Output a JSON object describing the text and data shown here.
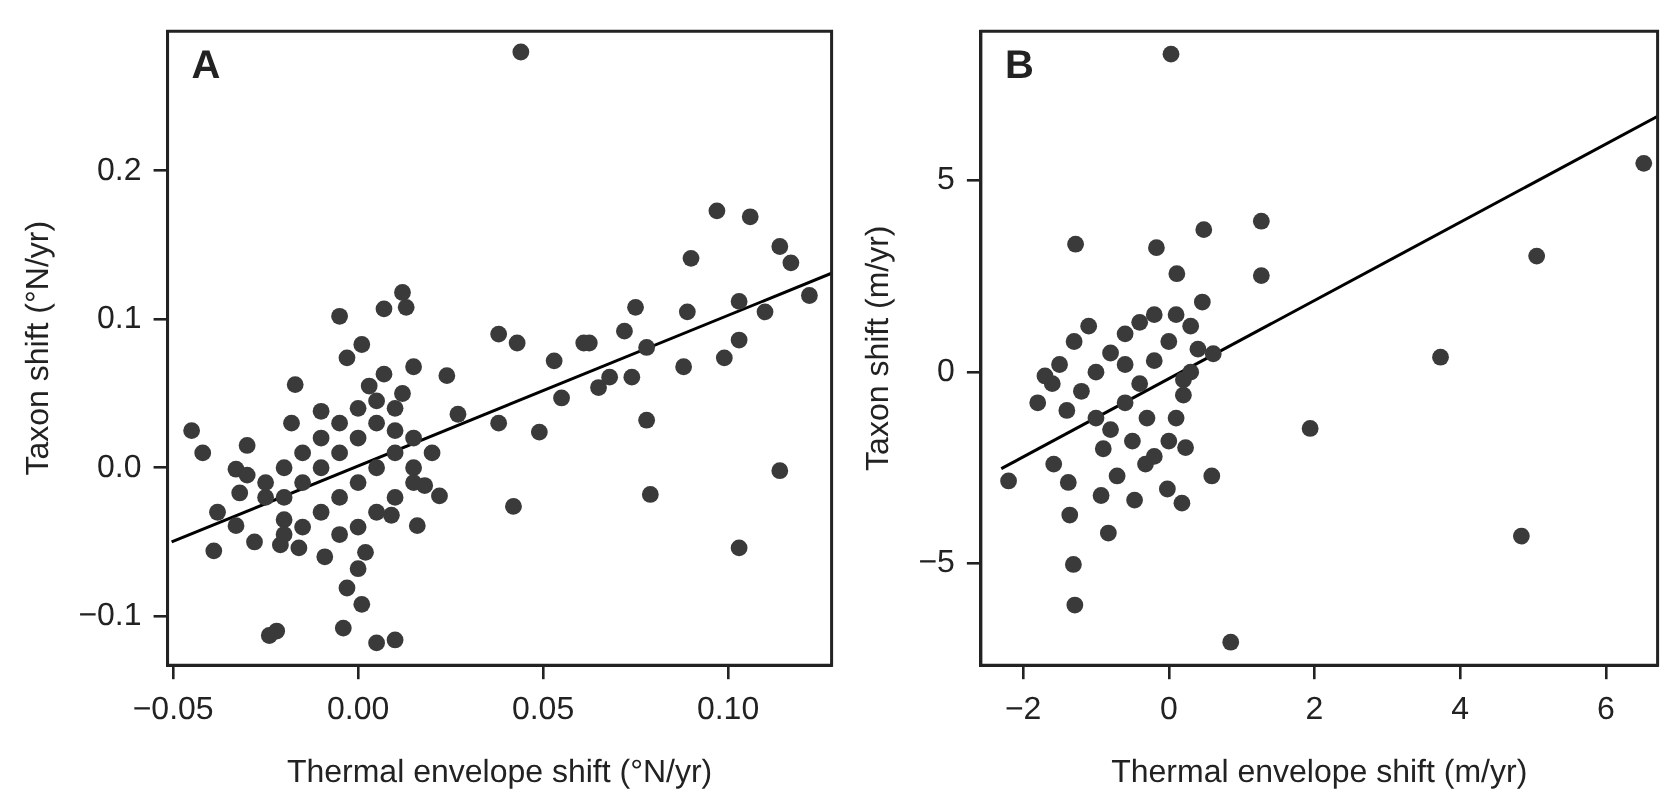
{
  "chart_data": [
    {
      "type": "scatter",
      "annotations": [
        "A"
      ],
      "xlabel": "Thermal envelope shift (°N/yr)",
      "ylabel": "Taxon shift (°N/yr)",
      "xlim": [
        -0.0515,
        0.128
      ],
      "ylim": [
        -0.133,
        0.294
      ],
      "xticks": [
        {
          "value": -0.05,
          "label": "−0.05"
        },
        {
          "value": 0,
          "label": "0.00"
        },
        0.05,
        {
          "value": 0.1,
          "label": "0.10"
        }
      ],
      "yticks": [
        {
          "value": -0.1,
          "label": "−0.1"
        },
        {
          "value": 0,
          "label": "0.0"
        },
        0.1,
        0.2
      ],
      "grid": false,
      "marker": "circle",
      "series": [
        {
          "color": "#3a3a3a",
          "x": [
            0.044,
            -0.045,
            -0.042,
            -0.03,
            -0.017,
            -0.018,
            -0.01,
            -0.005,
            0.001,
            -0.003,
            0.007,
            0.012,
            0.013,
            0.015,
            0.007,
            0.024,
            0.027,
            0.038,
            0.043,
            0.038,
            0.049,
            0.053,
            0.055,
            0.061,
            0.0625,
            0.072,
            0.075,
            0.065,
            0.068,
            0.074,
            0.078,
            0.078,
            0.079,
            0.089,
            0.09,
            0.088,
            0.097,
            0.106,
            0.099,
            0.103,
            0.103,
            0.11,
            0.114,
            0.117,
            0.122,
            0.114,
            0.103,
            0.042,
            0.018,
            0.022,
            0.016,
            0.009,
            0.002,
            0.0,
            -0.003,
            0.001,
            -0.004,
            0.005,
            0.01,
            -0.022,
            -0.024,
            -0.009,
            -0.039,
            -0.038,
            -0.033,
            -0.033,
            -0.032,
            -0.028,
            -0.021,
            -0.016,
            -0.02,
            -0.015,
            -0.01,
            -0.005,
            0.0,
            0.005,
            0.01,
            0.01,
            0.005,
            0.0,
            -0.005,
            -0.01,
            -0.015,
            -0.02,
            -0.025,
            -0.025,
            -0.02,
            -0.015,
            -0.01,
            -0.005,
            0.0,
            0.005,
            0.01,
            0.015,
            0.015,
            0.01,
            0.005,
            0.0,
            -0.005,
            0.015,
            0.02,
            -0.03,
            -0.02,
            0.003,
            0.012
          ],
          "values": [
            0.28,
            0.025,
            0.01,
            0.015,
            0.056,
            0.03,
            0.038,
            0.102,
            0.083,
            0.074,
            0.107,
            0.118,
            0.108,
            0.068,
            0.063,
            0.062,
            0.036,
            0.09,
            0.084,
            0.03,
            0.024,
            0.072,
            0.047,
            0.084,
            0.084,
            0.092,
            0.108,
            0.054,
            0.061,
            0.061,
            0.081,
            0.032,
            -0.018,
            0.105,
            0.141,
            0.068,
            0.173,
            0.169,
            0.074,
            0.086,
            0.112,
            0.105,
            0.149,
            0.138,
            0.116,
            -0.002,
            -0.054,
            -0.026,
            -0.012,
            -0.019,
            -0.039,
            -0.032,
            -0.057,
            -0.068,
            -0.081,
            -0.092,
            -0.108,
            -0.118,
            -0.116,
            -0.11,
            -0.113,
            -0.06,
            -0.056,
            -0.03,
            -0.039,
            -0.001,
            -0.017,
            -0.05,
            -0.052,
            -0.054,
            -0.02,
            -0.01,
            0.0,
            0.01,
            0.02,
            0.03,
            0.025,
            0.01,
            0.0,
            -0.01,
            -0.02,
            -0.03,
            -0.04,
            -0.035,
            -0.02,
            -0.01,
            0.0,
            0.01,
            0.02,
            0.03,
            0.04,
            0.045,
            0.04,
            0.02,
            0.0,
            -0.02,
            -0.03,
            -0.04,
            -0.045,
            -0.01,
            0.01,
            -0.005,
            -0.045,
            0.055,
            0.05
          ]
        },
        {
          "type": "line",
          "color": "#000000",
          "marker": "none",
          "x": [
            -0.0504,
            0.128
          ],
          "values": [
            -0.05,
            0.131
          ]
        }
      ]
    },
    {
      "type": "scatter",
      "annotations": [
        "B"
      ],
      "xlabel": "Thermal envelope shift (m/yr)",
      "ylabel": "Taxon shift (m/yr)",
      "xlim": [
        -2.58,
        6.71
      ],
      "ylim": [
        -7.65,
        8.9
      ],
      "xticks": [
        {
          "value": -2,
          "label": "−2"
        },
        0,
        2,
        4,
        6
      ],
      "yticks": [
        {
          "value": -5,
          "label": "−5"
        },
        0,
        5
      ],
      "grid": false,
      "marker": "circle",
      "series": [
        {
          "color": "#3a3a3a",
          "x": [
            0.03,
            6.52,
            5.05,
            3.73,
            1.94,
            4.84,
            0.85,
            -1.28,
            -0.17,
            0.48,
            1.27,
            1.27,
            0.11,
            0.46,
            0.61,
            -2.2,
            -1.58,
            -1.38,
            -1.36,
            -1.31,
            -1.29,
            -0.93,
            -0.83,
            -0.71,
            -0.47,
            -0.32,
            -0.02,
            0.18,
            0.59,
            0.23,
            -1.8,
            -1.6,
            -1.5,
            -1.3,
            -1.1,
            -1.4,
            -1.2,
            -1.0,
            -0.8,
            -0.6,
            -0.4,
            -0.2,
            0.1,
            0.3,
            0.4,
            0.3,
            0.2,
            0.1,
            0.0,
            -0.2,
            -0.5,
            -0.8,
            -1.0,
            -0.9,
            -0.6,
            -0.4,
            -0.2,
            0.0,
            -0.3,
            -1.7,
            -0.6,
            0.2
          ],
          "values": [
            8.3,
            5.45,
            3.03,
            0.39,
            -1.47,
            -4.28,
            -7.05,
            3.34,
            3.25,
            3.72,
            3.94,
            2.52,
            2.57,
            1.83,
            0.48,
            -2.84,
            -2.4,
            -2.88,
            -3.73,
            -5.02,
            -6.08,
            -3.22,
            -4.2,
            -2.71,
            -3.34,
            -2.4,
            -3.05,
            -3.42,
            -2.71,
            -1.97,
            -0.8,
            -0.3,
            0.2,
            0.8,
            1.2,
            -1.0,
            -0.5,
            0.0,
            0.5,
            1.0,
            1.3,
            1.5,
            1.5,
            1.2,
            0.6,
            0.0,
            -0.6,
            -1.2,
            -1.8,
            -2.2,
            -1.8,
            -1.5,
            -1.2,
            -2.0,
            -0.8,
            -0.3,
            0.3,
            0.8,
            -1.2,
            -0.1,
            0.2,
            -0.2
          ]
        },
        {
          "type": "line",
          "color": "#000000",
          "marker": "none",
          "x": [
            -2.3,
            6.71
          ],
          "values": [
            -2.52,
            6.68
          ]
        }
      ]
    }
  ]
}
